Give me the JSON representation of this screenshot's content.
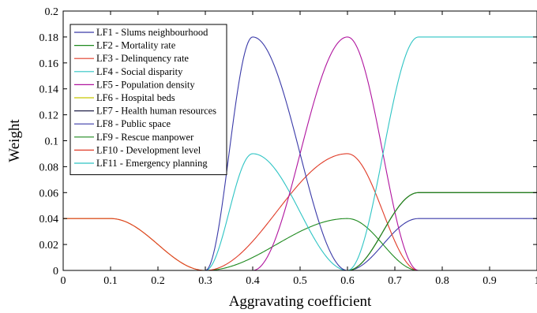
{
  "chart_data": {
    "type": "line",
    "title": "",
    "xlabel": "Aggravating coefficient",
    "ylabel": "Weight",
    "xlim": [
      0,
      1
    ],
    "ylim": [
      0,
      0.2
    ],
    "grid": false,
    "legend_position": "top-left",
    "x_ticks": [
      "0",
      "0.1",
      "0.2",
      "0.3",
      "0.4",
      "0.5",
      "0.6",
      "0.7",
      "0.8",
      "0.9",
      "1"
    ],
    "y_ticks": [
      "0",
      "0.02",
      "0.04",
      "0.06",
      "0.08",
      "0.1",
      "0.12",
      "0.14",
      "0.16",
      "0.18",
      "0.2"
    ],
    "series": [
      {
        "name": "LF1 - Slums neighbourhood",
        "color": "#3a3aa8",
        "points": [
          [
            0,
            0
          ],
          [
            0.6,
            0
          ],
          [
            0.75,
            0.04
          ],
          [
            1,
            0.04
          ]
        ]
      },
      {
        "name": "LF2 - Mortality rate",
        "color": "#1f8a1f",
        "points": [
          [
            0,
            0
          ],
          [
            0.3,
            0
          ],
          [
            0.6,
            0.04
          ],
          [
            0.75,
            0
          ],
          [
            1,
            0
          ]
        ]
      },
      {
        "name": "LF3 - Delinquency rate",
        "color": "#e03c28",
        "points": [
          [
            0,
            0
          ],
          [
            0.3,
            0
          ],
          [
            0.6,
            0.09
          ],
          [
            0.75,
            0
          ],
          [
            1,
            0
          ]
        ]
      },
      {
        "name": "LF4 - Social disparity",
        "color": "#2ec4c4",
        "points": [
          [
            0,
            0
          ],
          [
            0.3,
            0
          ],
          [
            0.4,
            0.09
          ],
          [
            0.6,
            0
          ],
          [
            1,
            0
          ]
        ]
      },
      {
        "name": "LF5 - Population density",
        "color": "#b0149e",
        "points": [
          [
            0,
            0
          ],
          [
            0.4,
            0
          ],
          [
            0.6,
            0.18
          ],
          [
            0.75,
            0
          ],
          [
            1,
            0
          ]
        ]
      },
      {
        "name": "LF6 - Hospital beds",
        "color": "#c8c800",
        "points": [
          [
            0,
            0.04
          ],
          [
            0.1,
            0.04
          ],
          [
            0.3,
            0
          ],
          [
            0.6,
            0
          ],
          [
            0.75,
            0.06
          ],
          [
            1,
            0.06
          ]
        ]
      },
      {
        "name": "LF7 - Health human resources",
        "color": "#22224a",
        "points": [
          [
            0,
            0
          ],
          [
            0.6,
            0
          ],
          [
            0.75,
            0.06
          ],
          [
            1,
            0.06
          ]
        ]
      },
      {
        "name": "LF8 - Public space",
        "color": "#3a3aa8",
        "points": [
          [
            0,
            0
          ],
          [
            0.3,
            0
          ],
          [
            0.4,
            0.18
          ],
          [
            0.6,
            0
          ],
          [
            1,
            0
          ]
        ]
      },
      {
        "name": "LF9 - Rescue manpower",
        "color": "#1f8a1f",
        "points": [
          [
            0,
            0
          ],
          [
            0.6,
            0
          ],
          [
            0.75,
            0.06
          ],
          [
            1,
            0.06
          ]
        ]
      },
      {
        "name": "LF10 - Development level",
        "color": "#e03c28",
        "points": [
          [
            0,
            0.04
          ],
          [
            0.1,
            0.04
          ],
          [
            0.3,
            0
          ],
          [
            1,
            0
          ]
        ]
      },
      {
        "name": "LF11 - Emergency planning",
        "color": "#2ec4c4",
        "points": [
          [
            0,
            0
          ],
          [
            0.6,
            0
          ],
          [
            0.75,
            0.18
          ],
          [
            1,
            0.18
          ]
        ]
      }
    ]
  }
}
